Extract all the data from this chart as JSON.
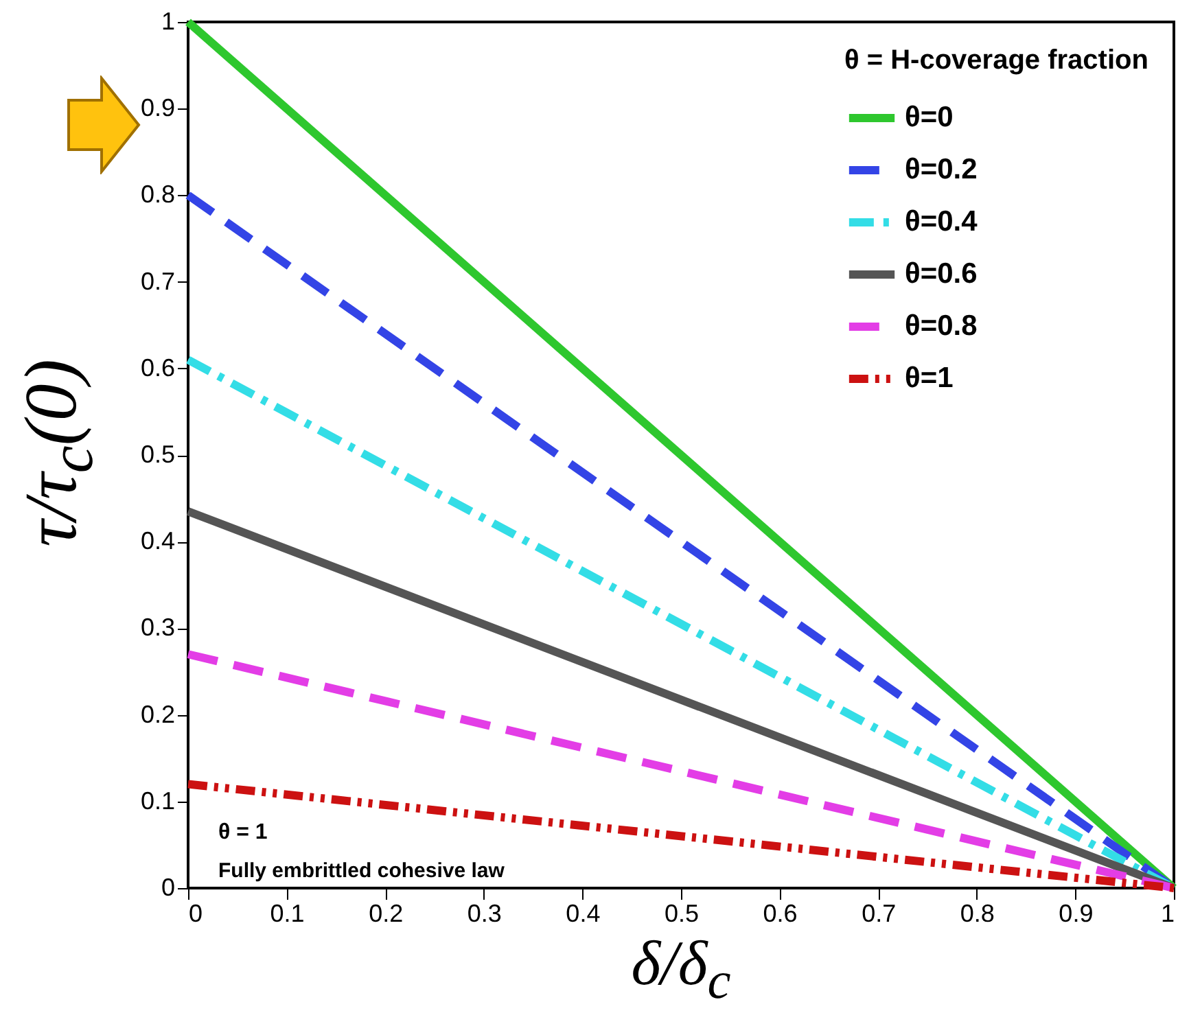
{
  "chart_data": {
    "type": "line",
    "xlabel": "δ/δ$_{c}$",
    "ylabel": "τ/τ$_{c}$(0)",
    "legend_title": "θ = H-coverage fraction",
    "x": [
      0,
      1
    ],
    "series": [
      {
        "name": "θ=0",
        "color": "#2ec72e",
        "line_style": "solid",
        "values": [
          1,
          0
        ]
      },
      {
        "name": "θ=0.2",
        "color": "#3344e6",
        "line_style": "dashed",
        "values": [
          0.8,
          0
        ]
      },
      {
        "name": "θ=0.4",
        "color": "#33dde6",
        "line_style": "dashdot",
        "values": [
          0.61,
          0
        ]
      },
      {
        "name": "θ=0.6",
        "color": "#555555",
        "line_style": "solid",
        "values": [
          0.435,
          0
        ]
      },
      {
        "name": "θ=0.8",
        "color": "#e33de6",
        "line_style": "dashed",
        "values": [
          0.27,
          0
        ]
      },
      {
        "name": "θ=1",
        "color": "#cc1111",
        "line_style": "dashdotdot",
        "values": [
          0.12,
          0
        ]
      }
    ],
    "annotations": [
      "θ = 1",
      "Fully embrittled cohesive law"
    ],
    "xlim": [
      0,
      1
    ],
    "xticks": [
      0,
      0.1,
      0.2,
      0.3,
      0.4,
      0.5,
      0.6,
      0.7,
      0.8,
      0.9,
      1
    ],
    "ylim": [
      0,
      1
    ],
    "yticks": [
      0,
      0.1,
      0.2,
      0.3,
      0.4,
      0.5,
      0.6,
      0.7,
      0.8,
      0.9,
      1
    ],
    "grid": false,
    "legend": "top right",
    "marker": "none"
  }
}
